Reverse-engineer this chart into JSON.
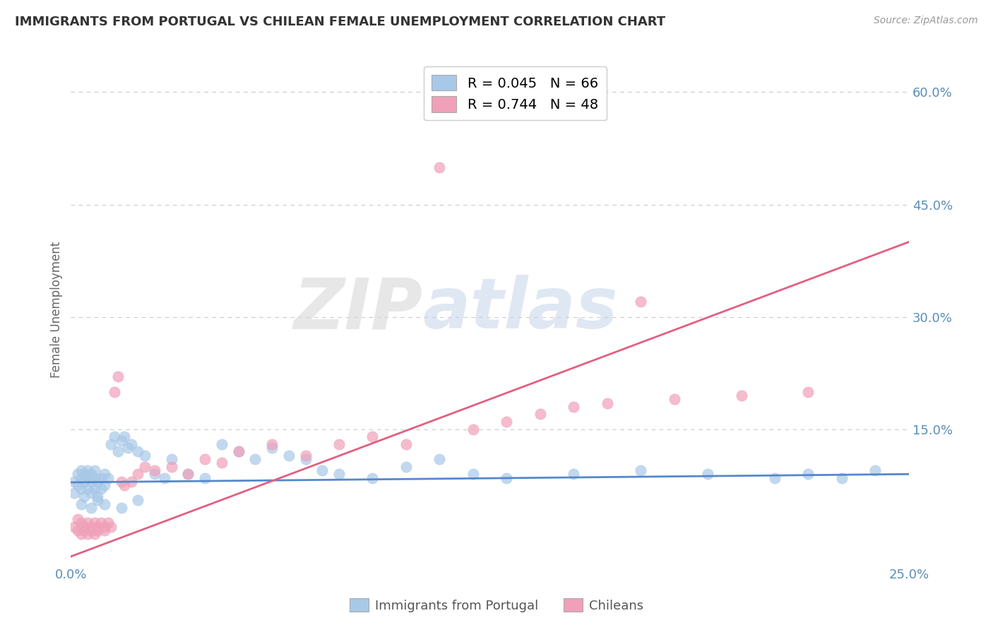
{
  "title": "IMMIGRANTS FROM PORTUGAL VS CHILEAN FEMALE UNEMPLOYMENT CORRELATION CHART",
  "source": "Source: ZipAtlas.com",
  "ylabel": "Female Unemployment",
  "xlim": [
    0.0,
    0.25
  ],
  "ylim": [
    -0.03,
    0.65
  ],
  "ytick_positions": [
    0.15,
    0.3,
    0.45,
    0.6
  ],
  "ytick_labels": [
    "15.0%",
    "30.0%",
    "45.0%",
    "60.0%"
  ],
  "series1_name": "Immigrants from Portugal",
  "series1_color": "#A8C8E8",
  "series1_line_color": "#5588CC",
  "series1_R": 0.045,
  "series1_N": 66,
  "series2_name": "Chileans",
  "series2_color": "#F0A0B8",
  "series2_line_color": "#E06080",
  "series2_R": 0.744,
  "series2_N": 48,
  "grid_color": "#CCCCCC",
  "title_color": "#333333",
  "tick_color": "#5B8DB8",
  "background_color": "#FFFFFF",
  "series1_x": [
    0.001,
    0.001,
    0.002,
    0.002,
    0.003,
    0.003,
    0.003,
    0.004,
    0.004,
    0.004,
    0.005,
    0.005,
    0.005,
    0.006,
    0.006,
    0.006,
    0.007,
    0.007,
    0.007,
    0.008,
    0.008,
    0.009,
    0.009,
    0.01,
    0.01,
    0.011,
    0.012,
    0.013,
    0.014,
    0.015,
    0.016,
    0.017,
    0.018,
    0.02,
    0.022,
    0.025,
    0.028,
    0.03,
    0.035,
    0.04,
    0.045,
    0.05,
    0.055,
    0.06,
    0.065,
    0.07,
    0.075,
    0.08,
    0.09,
    0.1,
    0.11,
    0.12,
    0.13,
    0.15,
    0.17,
    0.19,
    0.21,
    0.22,
    0.23,
    0.24,
    0.003,
    0.006,
    0.008,
    0.01,
    0.015,
    0.02
  ],
  "series1_y": [
    0.08,
    0.065,
    0.09,
    0.075,
    0.085,
    0.07,
    0.095,
    0.08,
    0.06,
    0.09,
    0.085,
    0.07,
    0.095,
    0.08,
    0.065,
    0.09,
    0.085,
    0.07,
    0.095,
    0.08,
    0.06,
    0.085,
    0.07,
    0.09,
    0.075,
    0.085,
    0.13,
    0.14,
    0.12,
    0.135,
    0.14,
    0.125,
    0.13,
    0.12,
    0.115,
    0.09,
    0.085,
    0.11,
    0.09,
    0.085,
    0.13,
    0.12,
    0.11,
    0.125,
    0.115,
    0.11,
    0.095,
    0.09,
    0.085,
    0.1,
    0.11,
    0.09,
    0.085,
    0.09,
    0.095,
    0.09,
    0.085,
    0.09,
    0.085,
    0.095,
    0.05,
    0.045,
    0.055,
    0.05,
    0.045,
    0.055
  ],
  "series2_x": [
    0.001,
    0.002,
    0.002,
    0.003,
    0.003,
    0.004,
    0.004,
    0.005,
    0.005,
    0.006,
    0.006,
    0.007,
    0.007,
    0.008,
    0.008,
    0.009,
    0.01,
    0.01,
    0.011,
    0.012,
    0.013,
    0.014,
    0.015,
    0.016,
    0.018,
    0.02,
    0.022,
    0.025,
    0.03,
    0.035,
    0.04,
    0.045,
    0.05,
    0.06,
    0.07,
    0.08,
    0.09,
    0.1,
    0.11,
    0.12,
    0.13,
    0.14,
    0.15,
    0.16,
    0.17,
    0.18,
    0.2,
    0.22
  ],
  "series2_y": [
    0.02,
    0.03,
    0.015,
    0.025,
    0.01,
    0.02,
    0.015,
    0.025,
    0.01,
    0.02,
    0.015,
    0.025,
    0.01,
    0.02,
    0.015,
    0.025,
    0.02,
    0.015,
    0.025,
    0.02,
    0.2,
    0.22,
    0.08,
    0.075,
    0.08,
    0.09,
    0.1,
    0.095,
    0.1,
    0.09,
    0.11,
    0.105,
    0.12,
    0.13,
    0.115,
    0.13,
    0.14,
    0.13,
    0.5,
    0.15,
    0.16,
    0.17,
    0.18,
    0.185,
    0.32,
    0.19,
    0.195,
    0.2
  ],
  "trend1_x0": 0.0,
  "trend1_y0": 0.079,
  "trend1_x1": 0.25,
  "trend1_y1": 0.09,
  "trend2_x0": 0.0,
  "trend2_y0": -0.02,
  "trend2_x1": 0.25,
  "trend2_y1": 0.4
}
